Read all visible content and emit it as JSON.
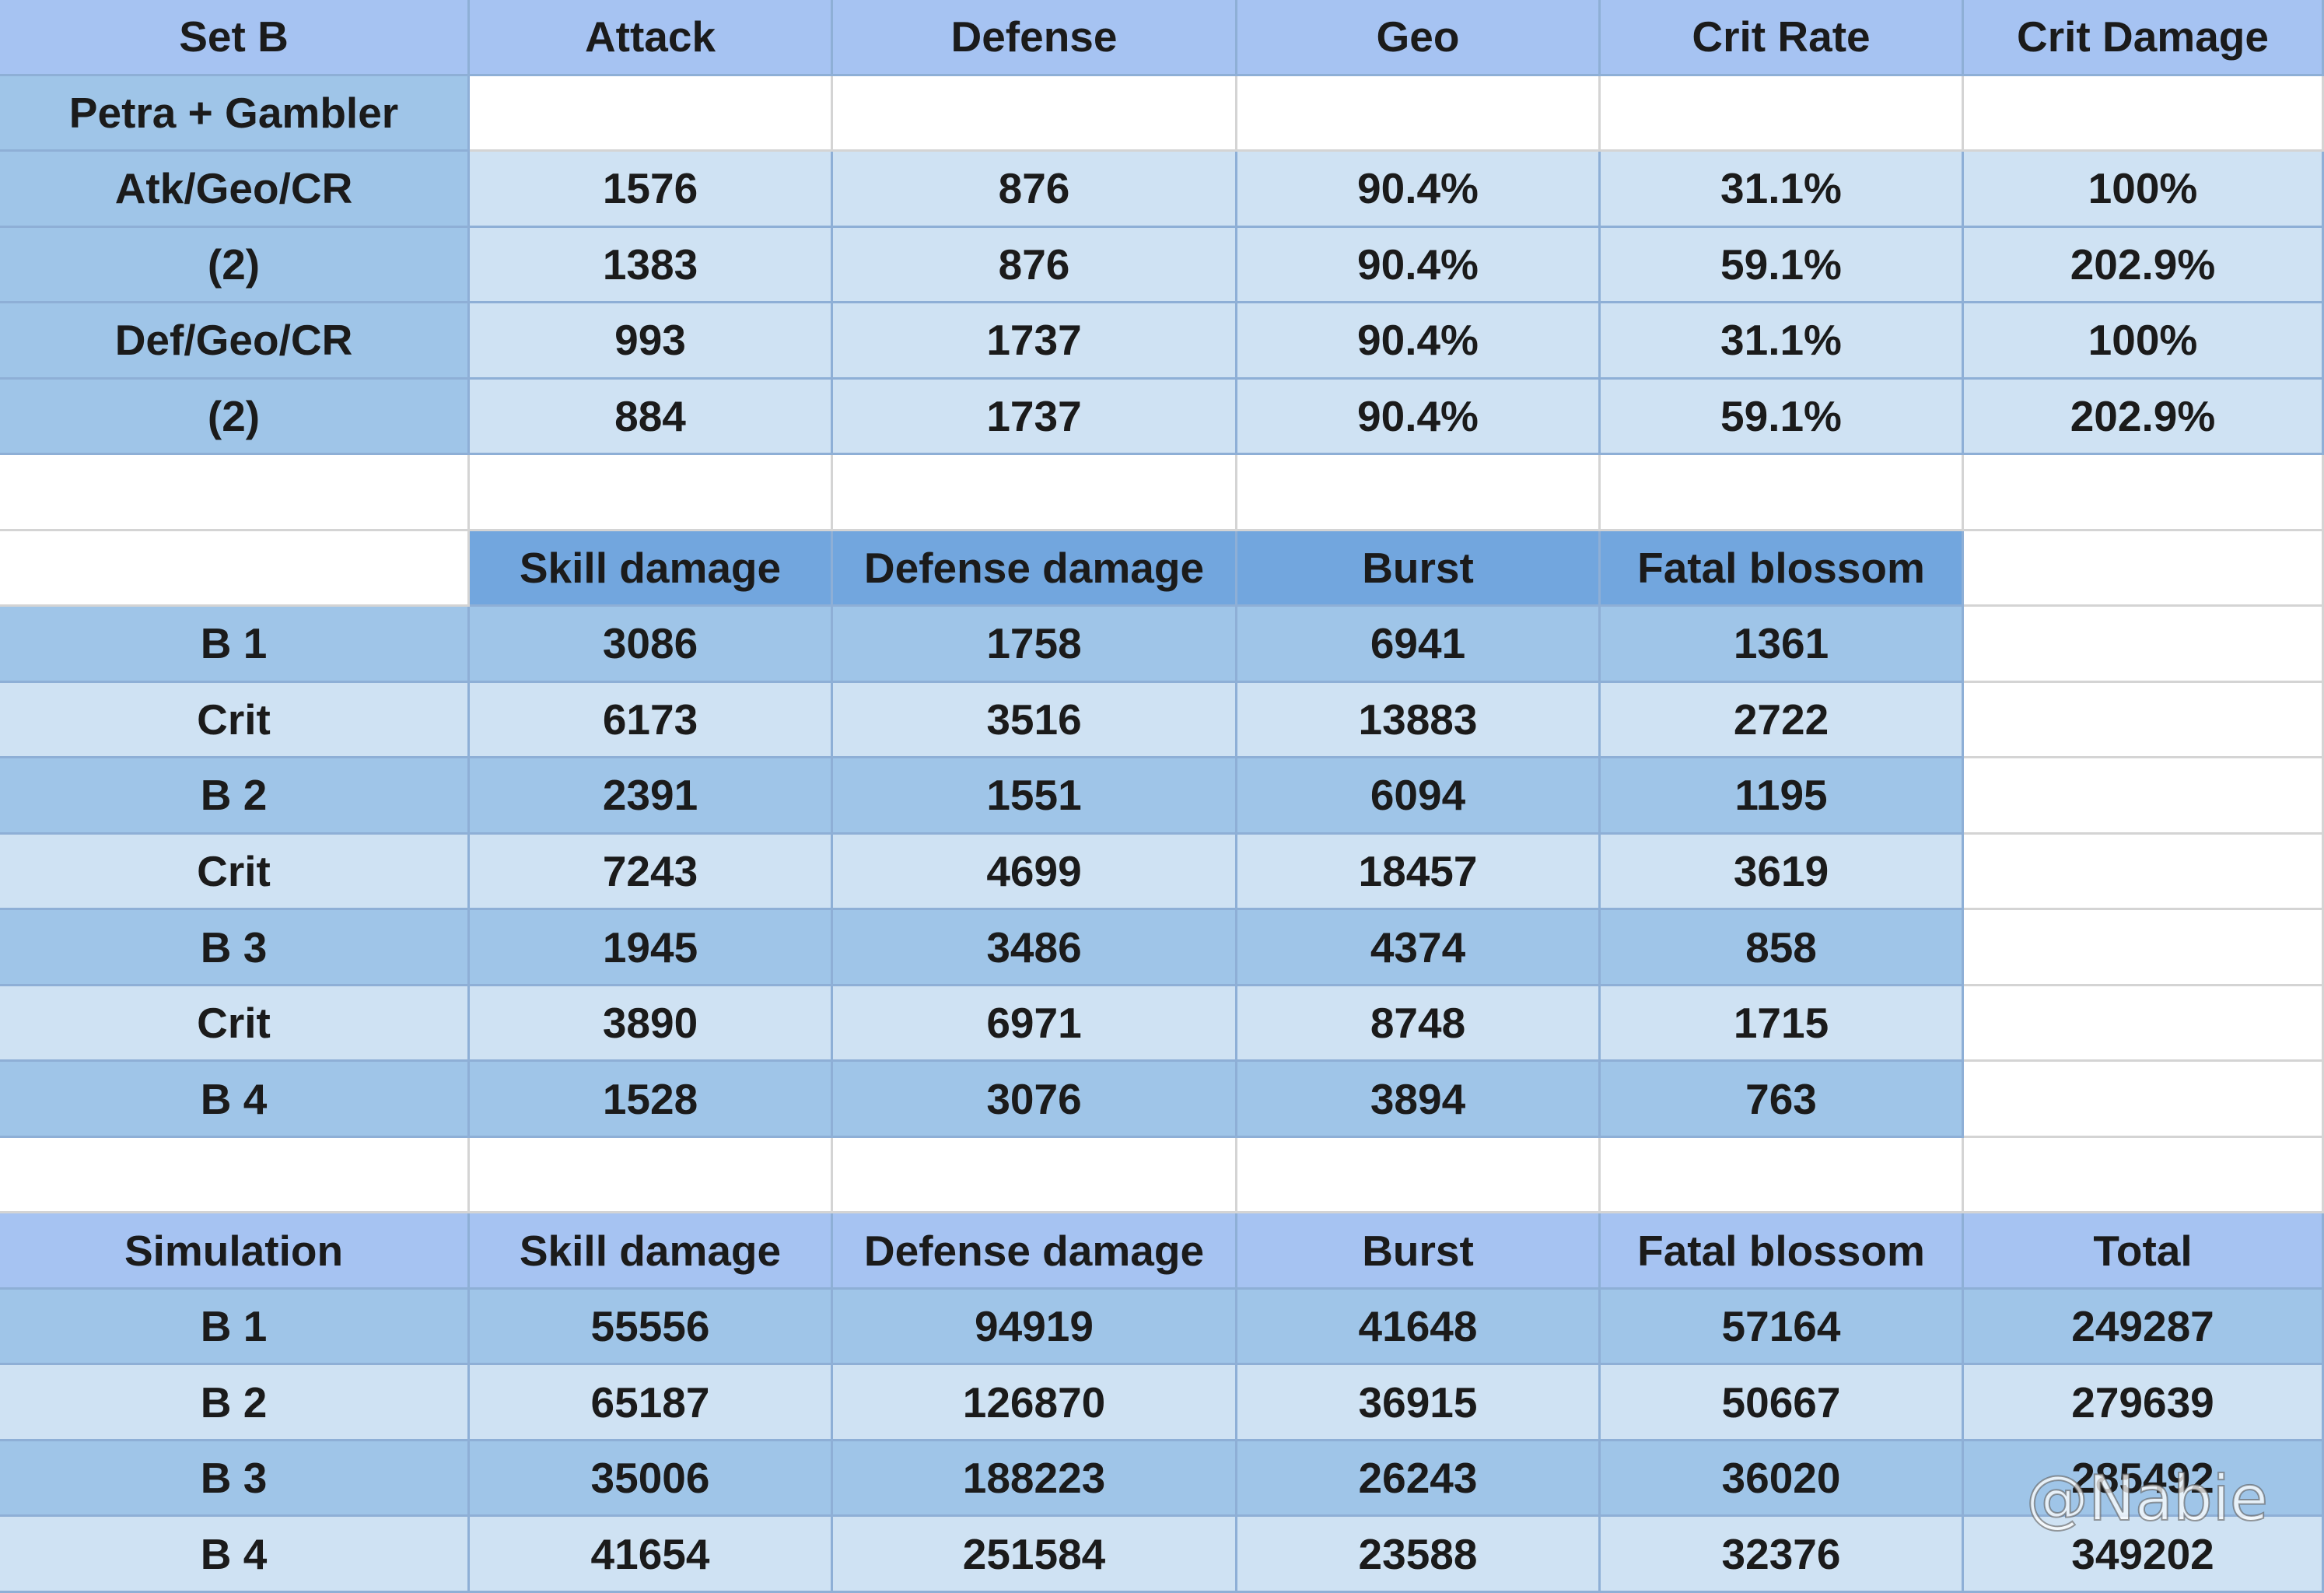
{
  "stats": {
    "header": [
      "Set B",
      "Attack",
      "Defense",
      "Geo",
      "Crit Rate",
      "Crit Damage"
    ],
    "group": "Petra + Gambler",
    "rows": [
      [
        "Atk/Geo/CR",
        1576,
        876,
        "90.4%",
        "31.1%",
        "100%"
      ],
      [
        "(2)",
        1383,
        876,
        "90.4%",
        "59.1%",
        "202.9%"
      ],
      [
        "Def/Geo/CR",
        993,
        1737,
        "90.4%",
        "31.1%",
        "100%"
      ],
      [
        "(2)",
        884,
        1737,
        "90.4%",
        "59.1%",
        "202.9%"
      ]
    ]
  },
  "damage": {
    "header": [
      "Skill damage",
      "Defense damage",
      "Burst",
      "Fatal blossom"
    ],
    "rows": [
      [
        "B 1",
        3086,
        1758,
        6941,
        1361
      ],
      [
        "Crit",
        6173,
        3516,
        13883,
        2722
      ],
      [
        "B 2",
        2391,
        1551,
        6094,
        1195
      ],
      [
        "Crit",
        7243,
        4699,
        18457,
        3619
      ],
      [
        "B 3",
        1945,
        3486,
        4374,
        858
      ],
      [
        "Crit",
        3890,
        6971,
        8748,
        1715
      ],
      [
        "B 4",
        1528,
        3076,
        3894,
        763
      ]
    ]
  },
  "simulation": {
    "header": [
      "Simulation",
      "Skill damage",
      "Defense damage",
      "Burst",
      "Fatal blossom",
      "Total"
    ],
    "rows": [
      [
        "B 1",
        55556,
        94919,
        41648,
        57164,
        249287
      ],
      [
        "B 2",
        65187,
        126870,
        36915,
        50667,
        279639
      ],
      [
        "B 3",
        35006,
        188223,
        26243,
        36020,
        285492
      ],
      [
        "B 4",
        41654,
        251584,
        23588,
        32376,
        349202
      ]
    ]
  },
  "watermark": "@Nabie"
}
